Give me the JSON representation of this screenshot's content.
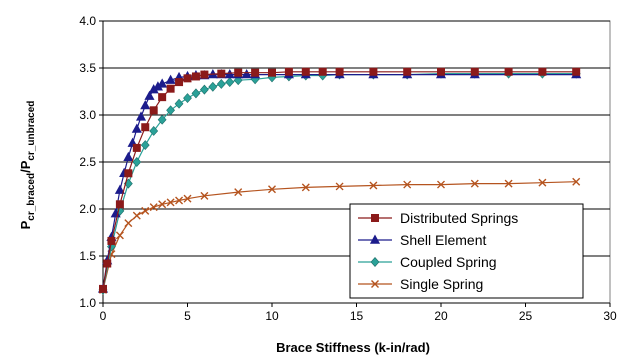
{
  "chart_data": {
    "type": "line",
    "xlabel": "Brace Stiffness (k-in/rad)",
    "ylabel": {
      "base": "P",
      "sub1": "cr_braced",
      "sep": "/P",
      "sub2": "cr_unbraced"
    },
    "xlim": [
      0,
      30
    ],
    "ylim": [
      1.0,
      4.0
    ],
    "x_ticks": [
      "0",
      "5",
      "10",
      "15",
      "20",
      "25",
      "30"
    ],
    "y_ticks": [
      "1.0",
      "1.5",
      "2.0",
      "2.5",
      "3.0",
      "3.5",
      "4.0"
    ],
    "grid": "horizontal",
    "legend_position": "bottom-right",
    "series": [
      {
        "name": "Distributed Springs",
        "color": "#8B1A1A",
        "marker": "square",
        "points": [
          [
            0,
            1.15
          ],
          [
            0.25,
            1.42
          ],
          [
            0.5,
            1.66
          ],
          [
            1.0,
            2.05
          ],
          [
            1.5,
            2.38
          ],
          [
            2.0,
            2.65
          ],
          [
            2.5,
            2.87
          ],
          [
            3.0,
            3.05
          ],
          [
            3.5,
            3.19
          ],
          [
            4.0,
            3.28
          ],
          [
            4.5,
            3.35
          ],
          [
            5.0,
            3.39
          ],
          [
            5.5,
            3.41
          ],
          [
            6.0,
            3.43
          ],
          [
            7.0,
            3.44
          ],
          [
            8.0,
            3.45
          ],
          [
            9.0,
            3.45
          ],
          [
            10.0,
            3.45
          ],
          [
            11.0,
            3.46
          ],
          [
            12.0,
            3.46
          ],
          [
            13.0,
            3.46
          ],
          [
            14.0,
            3.46
          ],
          [
            16.0,
            3.46
          ],
          [
            18.0,
            3.46
          ],
          [
            20.0,
            3.46
          ],
          [
            22.0,
            3.46
          ],
          [
            24.0,
            3.46
          ],
          [
            26.0,
            3.46
          ],
          [
            28.0,
            3.46
          ]
        ]
      },
      {
        "name": "Shell Element",
        "color": "#1C1C8C",
        "marker": "triangle",
        "points": [
          [
            0,
            1.15
          ],
          [
            0.25,
            1.45
          ],
          [
            0.5,
            1.7
          ],
          [
            0.75,
            1.95
          ],
          [
            1.0,
            2.2
          ],
          [
            1.25,
            2.38
          ],
          [
            1.5,
            2.55
          ],
          [
            1.75,
            2.7
          ],
          [
            2.0,
            2.85
          ],
          [
            2.25,
            2.98
          ],
          [
            2.5,
            3.1
          ],
          [
            2.75,
            3.2
          ],
          [
            3.0,
            3.27
          ],
          [
            3.25,
            3.3
          ],
          [
            3.5,
            3.33
          ],
          [
            4.0,
            3.37
          ],
          [
            4.5,
            3.4
          ],
          [
            5.0,
            3.41
          ],
          [
            5.5,
            3.42
          ],
          [
            6.0,
            3.42
          ],
          [
            6.5,
            3.43
          ],
          [
            7.0,
            3.43
          ],
          [
            7.5,
            3.43
          ],
          [
            8.0,
            3.43
          ],
          [
            8.5,
            3.43
          ],
          [
            9.0,
            3.43
          ],
          [
            11.0,
            3.43
          ],
          [
            12.0,
            3.43
          ],
          [
            14.0,
            3.43
          ],
          [
            16.0,
            3.43
          ],
          [
            18.0,
            3.43
          ],
          [
            20.0,
            3.43
          ],
          [
            22.0,
            3.43
          ],
          [
            28.0,
            3.43
          ]
        ]
      },
      {
        "name": "Coupled Spring",
        "color": "#2AA198",
        "marker": "diamond",
        "points": [
          [
            0,
            1.14
          ],
          [
            0.5,
            1.6
          ],
          [
            1.0,
            1.98
          ],
          [
            1.5,
            2.27
          ],
          [
            2.0,
            2.5
          ],
          [
            2.5,
            2.68
          ],
          [
            3.0,
            2.83
          ],
          [
            3.5,
            2.95
          ],
          [
            4.0,
            3.05
          ],
          [
            4.5,
            3.12
          ],
          [
            5.0,
            3.18
          ],
          [
            5.5,
            3.23
          ],
          [
            6.0,
            3.27
          ],
          [
            6.5,
            3.3
          ],
          [
            7.0,
            3.33
          ],
          [
            7.5,
            3.35
          ],
          [
            8.0,
            3.37
          ],
          [
            9.0,
            3.38
          ],
          [
            10.0,
            3.4
          ],
          [
            11.0,
            3.41
          ],
          [
            12.0,
            3.42
          ],
          [
            13.0,
            3.42
          ],
          [
            14.0,
            3.43
          ],
          [
            16.0,
            3.43
          ],
          [
            18.0,
            3.43
          ],
          [
            20.0,
            3.44
          ],
          [
            22.0,
            3.44
          ],
          [
            24.0,
            3.44
          ],
          [
            26.0,
            3.44
          ],
          [
            28.0,
            3.44
          ]
        ]
      },
      {
        "name": "Single Spring",
        "color": "#B5541F",
        "marker": "x",
        "points": [
          [
            0,
            1.14
          ],
          [
            0.5,
            1.52
          ],
          [
            1.0,
            1.72
          ],
          [
            1.5,
            1.85
          ],
          [
            2.0,
            1.93
          ],
          [
            2.5,
            1.98
          ],
          [
            3.0,
            2.02
          ],
          [
            3.5,
            2.05
          ],
          [
            4.0,
            2.07
          ],
          [
            4.5,
            2.09
          ],
          [
            5.0,
            2.11
          ],
          [
            6.0,
            2.14
          ],
          [
            8.0,
            2.18
          ],
          [
            10.0,
            2.21
          ],
          [
            12.0,
            2.23
          ],
          [
            14.0,
            2.24
          ],
          [
            16.0,
            2.25
          ],
          [
            18.0,
            2.26
          ],
          [
            20.0,
            2.26
          ],
          [
            22.0,
            2.27
          ],
          [
            24.0,
            2.27
          ],
          [
            26.0,
            2.28
          ],
          [
            28.0,
            2.29
          ]
        ]
      }
    ]
  }
}
